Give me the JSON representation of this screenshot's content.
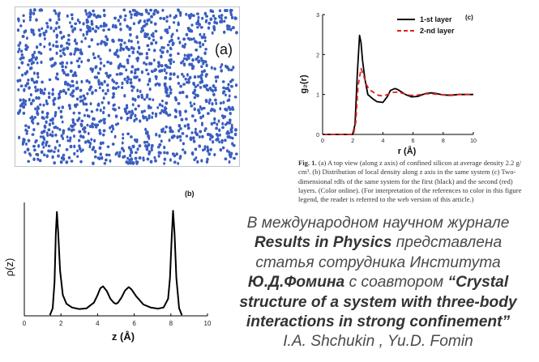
{
  "panel_a": {
    "label": "(a)",
    "dot_color": "#3a5ec0",
    "dot_count": 1400
  },
  "chart_data": [
    {
      "type": "line",
      "panel_label": "(b)",
      "title": "",
      "xlabel": "z (Å)",
      "ylabel": "ρ(z)",
      "xlim": [
        0,
        10
      ],
      "ylim": [
        0,
        30
      ],
      "xticks": [
        "0",
        "2",
        "4",
        "6",
        "8",
        "10"
      ],
      "yticks": [],
      "grid": false,
      "series": [
        {
          "color": "#000000",
          "x": [
            1.4,
            1.55,
            1.65,
            1.72,
            1.78,
            1.85,
            1.95,
            2.1,
            2.3,
            2.6,
            3.0,
            3.4,
            3.8,
            4.0,
            4.15,
            4.3,
            4.5,
            4.7,
            4.9,
            5.0,
            5.1,
            5.3,
            5.5,
            5.7,
            5.85,
            6.1,
            6.5,
            6.9,
            7.3,
            7.6,
            7.85,
            7.95,
            8.05,
            8.12,
            8.2,
            8.3,
            8.45,
            8.6
          ],
          "y": [
            0.2,
            2.0,
            9.0,
            22.0,
            27.5,
            22.0,
            12.0,
            5.5,
            3.2,
            2.2,
            1.8,
            2.0,
            3.5,
            5.5,
            7.3,
            7.8,
            6.6,
            4.5,
            3.4,
            3.2,
            3.4,
            4.8,
            6.7,
            7.6,
            7.0,
            5.2,
            3.0,
            2.2,
            1.9,
            2.2,
            4.5,
            10.0,
            21.0,
            27.8,
            22.0,
            10.0,
            2.0,
            0.2
          ]
        }
      ]
    },
    {
      "type": "line",
      "panel_label": "(c)",
      "title": "",
      "xlabel": "r (Å)",
      "ylabel": "g₂(r)",
      "xlim": [
        0,
        10
      ],
      "ylim": [
        0,
        3
      ],
      "xticks": [
        "0",
        "2",
        "4",
        "6",
        "8",
        "10"
      ],
      "yticks": [
        "0",
        "1",
        "2",
        "3"
      ],
      "grid": false,
      "legend_position": "top-right",
      "series": [
        {
          "name": "1-st layer",
          "color": "#000000",
          "dash": "solid",
          "x": [
            0,
            2.0,
            2.15,
            2.3,
            2.45,
            2.55,
            2.65,
            2.8,
            3.0,
            3.3,
            3.6,
            4.0,
            4.3,
            4.5,
            4.8,
            5.0,
            5.2,
            5.5,
            5.9,
            6.3,
            6.8,
            7.2,
            7.6,
            8.0,
            8.5,
            9.0,
            9.5,
            10.0
          ],
          "y": [
            0,
            0,
            0.25,
            1.5,
            2.48,
            2.3,
            1.85,
            1.4,
            1.0,
            0.9,
            0.82,
            0.8,
            0.95,
            1.1,
            1.15,
            1.12,
            1.07,
            1.0,
            0.94,
            0.95,
            1.02,
            1.04,
            1.02,
            0.99,
            0.98,
            1.0,
            1.0,
            1.0
          ]
        },
        {
          "name": "2-nd layer",
          "color": "#e02020",
          "dash": "dashed",
          "x": [
            0,
            2.05,
            2.2,
            2.35,
            2.55,
            2.7,
            2.9,
            3.1,
            3.4,
            3.7,
            4.0,
            4.3,
            4.6,
            5.0,
            5.4,
            5.8,
            6.2,
            6.7,
            7.1,
            7.5,
            8.0,
            8.5,
            9.0,
            9.5,
            10.0
          ],
          "y": [
            0,
            0,
            0.3,
            1.2,
            1.65,
            1.5,
            1.25,
            1.12,
            1.05,
            0.98,
            0.96,
            1.0,
            1.05,
            1.06,
            1.02,
            0.98,
            0.98,
            1.01,
            1.02,
            1.01,
            0.99,
            0.99,
            1.0,
            1.0,
            1.0
          ]
        }
      ]
    }
  ],
  "caption": {
    "fig_label": "Fig. 1.",
    "line1": "(a) A top view (along z axis) of confined silicon at average density 2.2 g/",
    "line2": "cm³. (b) Distribution of local density along z axis in the same system (c) Two-",
    "line3": "dimensional rdfs of the same system for the first (black) and the second (red)",
    "line4": "layers. (Color online). (For interpretation of the references to color in this figure",
    "line5": "legend, the reader is referred to the web version of this article.)"
  },
  "announcement": {
    "line1": "В международном научном журнале",
    "journal": "Results in Physics",
    "line2_rest": " представлена",
    "line3": "статья сотрудника Института",
    "author": "Ю.Д.Фомина",
    "line4_rest": " с соавтором ",
    "title_line1": "“Crystal",
    "title_line2": "structure of a system with three-body",
    "title_line3": "interactions in strong confinement”",
    "authors": "I.A. Shchukin , Yu.D. Fomin"
  }
}
